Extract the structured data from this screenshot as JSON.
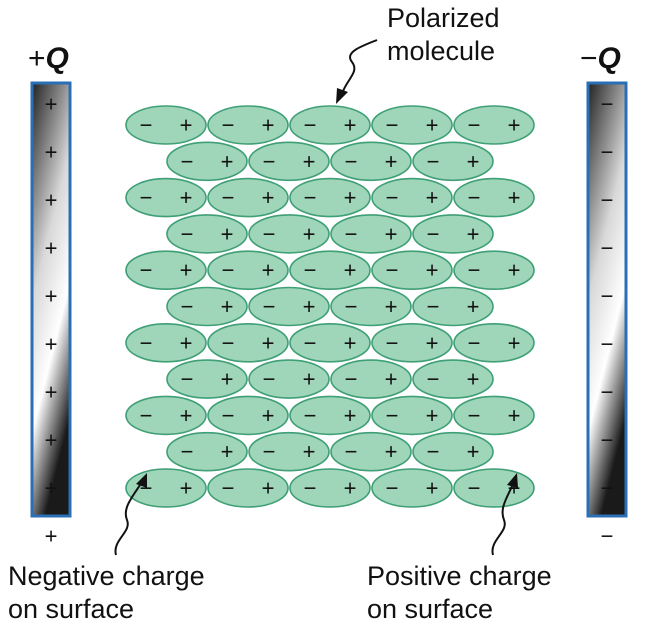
{
  "left_plate": {
    "sign": "+",
    "letter": "Q",
    "charge_symbols": [
      "+",
      "+",
      "+",
      "+",
      "+",
      "+",
      "+",
      "+",
      "+",
      "+"
    ]
  },
  "right_plate": {
    "sign": "−",
    "letter": "Q",
    "charge_symbols": [
      "−",
      "−",
      "−",
      "−",
      "−",
      "−",
      "−",
      "−",
      "−",
      "−"
    ]
  },
  "molecule": {
    "negative_symbol": "−",
    "positive_symbol": "+",
    "fill_color": "#9fd5b8",
    "stroke_color": "#3f9f77"
  },
  "lattice": {
    "row_count": 11,
    "long_row_molecules": 5,
    "short_row_molecules": 4
  },
  "labels": {
    "polarized_line1": "Polarized",
    "polarized_line2": "molecule",
    "negative_line1": "Negative charge",
    "negative_line2": "on surface",
    "positive_line1": "Positive charge",
    "positive_line2": "on surface"
  }
}
